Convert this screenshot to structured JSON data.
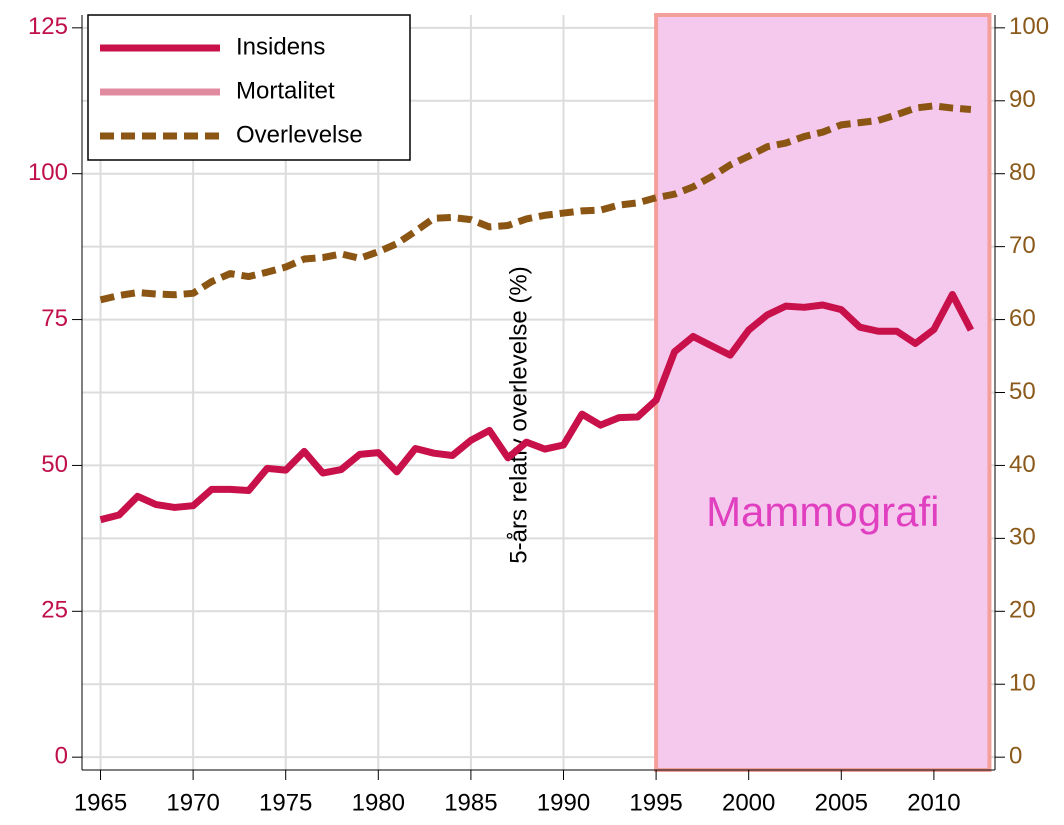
{
  "chart_data": {
    "type": "line",
    "y2label": "5-års relativ overlevelse (%)",
    "annotation": {
      "text": "Mammografi",
      "x": [
        1995,
        2013
      ],
      "color": "#e040c0",
      "fill": "#f5c8ee",
      "edge": "#f4a09a"
    },
    "x": [
      1965,
      1966,
      1967,
      1968,
      1969,
      1970,
      1971,
      1972,
      1973,
      1974,
      1975,
      1976,
      1977,
      1978,
      1979,
      1980,
      1981,
      1982,
      1983,
      1984,
      1985,
      1986,
      1987,
      1988,
      1989,
      1990,
      1991,
      1992,
      1993,
      1994,
      1995,
      1996,
      1997,
      1998,
      1999,
      2000,
      2001,
      2002,
      2003,
      2004,
      2005,
      2006,
      2007,
      2008,
      2009,
      2010,
      2011,
      2012
    ],
    "series": [
      {
        "name": "Insidens",
        "color": "#c8104a",
        "dash": "solid",
        "axis": "y",
        "values": [
          40.7,
          41.5,
          44.7,
          43.3,
          42.8,
          43.1,
          45.9,
          45.9,
          45.7,
          49.5,
          49.2,
          52.4,
          48.7,
          49.3,
          51.9,
          52.2,
          48.9,
          52.9,
          52.1,
          51.7,
          54.3,
          56.0,
          51.3,
          54.0,
          52.8,
          53.5,
          58.8,
          56.9,
          58.2,
          58.3,
          61.2,
          69.5,
          72.1,
          70.5,
          68.9,
          73.2,
          75.8,
          77.3,
          77.1,
          77.5,
          76.7,
          73.7,
          73.0,
          73.0,
          70.9,
          73.3,
          79.3,
          73.2
        ]
      },
      {
        "name": "Mortalitet",
        "color": "#e08aa0",
        "dash": "solid",
        "axis": "y",
        "values": [
          null,
          null,
          null,
          null,
          null,
          null,
          null,
          null,
          null,
          null,
          null,
          null,
          null,
          null,
          null,
          null,
          null,
          null,
          null,
          null,
          null,
          null,
          null,
          null,
          null,
          null,
          null,
          null,
          null,
          null,
          null,
          null,
          null,
          null,
          null,
          null,
          null,
          null,
          null,
          null,
          null,
          null,
          null,
          null,
          null,
          null,
          null,
          null
        ]
      },
      {
        "name": "Overlevelse",
        "color": "#8b5514",
        "dash": "dashed",
        "axis": "y2",
        "values": [
          62.7,
          63.3,
          63.7,
          63.5,
          63.4,
          63.6,
          65.2,
          66.3,
          65.9,
          66.5,
          67.2,
          68.3,
          68.5,
          69.0,
          68.4,
          69.3,
          70.4,
          72.1,
          73.9,
          74.0,
          73.7,
          72.7,
          72.9,
          73.8,
          74.3,
          74.6,
          74.9,
          75.0,
          75.7,
          76.0,
          76.7,
          77.2,
          78.2,
          79.6,
          81.2,
          82.4,
          83.7,
          84.2,
          85.1,
          85.7,
          86.7,
          87.0,
          87.3,
          88.1,
          89.0,
          89.3,
          89.0,
          88.8
        ]
      }
    ],
    "xlim": [
      1964,
      2013.3
    ],
    "xticks": [
      1965,
      1970,
      1975,
      1980,
      1985,
      1990,
      1995,
      2000,
      2005,
      2010
    ],
    "ylim": [
      -2.2,
      127.2
    ],
    "yticks": [
      0,
      25,
      50,
      75,
      100,
      125
    ],
    "y2lim": [
      -1.76,
      101.76
    ],
    "y2ticks": [
      0,
      10,
      20,
      30,
      40,
      50,
      60,
      70,
      80,
      90,
      100
    ],
    "ycolor": "#c0104a",
    "y2color": "#8b5a1a",
    "grid": true,
    "legend": "upper left"
  }
}
